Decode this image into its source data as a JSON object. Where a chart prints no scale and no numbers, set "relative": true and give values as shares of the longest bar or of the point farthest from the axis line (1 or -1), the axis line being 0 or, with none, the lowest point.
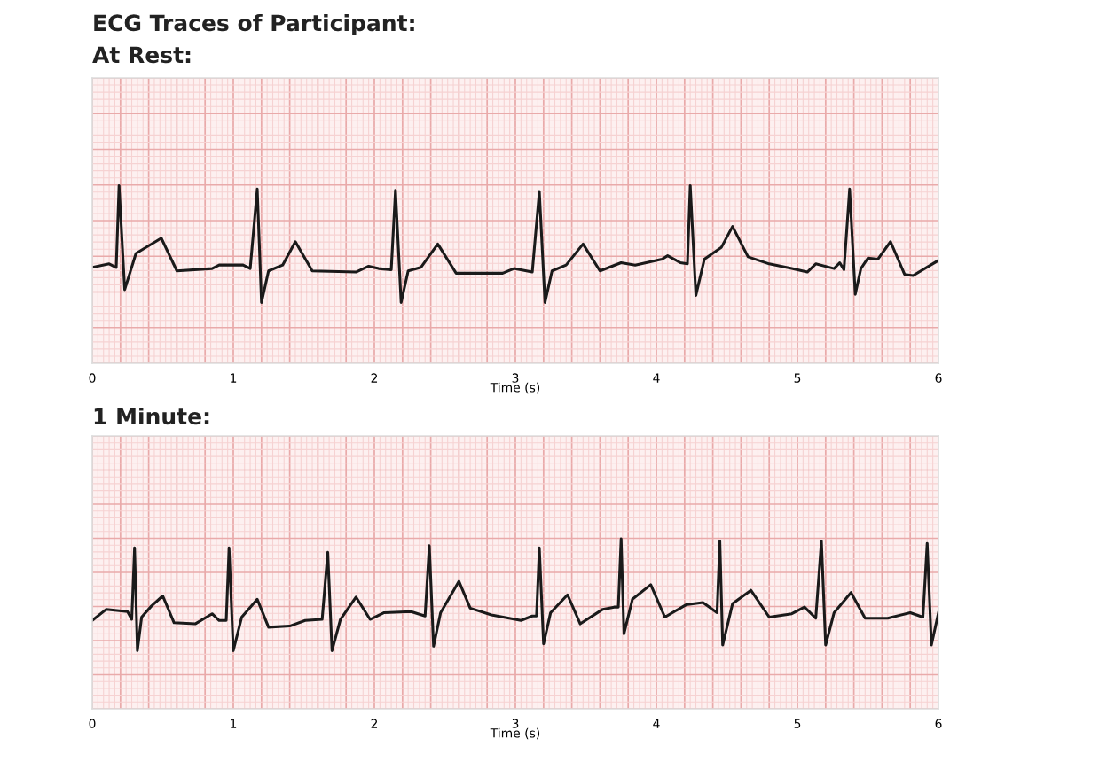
{
  "chart_data": [
    {
      "type": "line",
      "title": "ECG Traces of Participant:",
      "subtitle": "At Rest:",
      "xlabel": "Time (s)",
      "relative": true,
      "xlim": [
        0,
        6
      ],
      "xticks": [
        0,
        1,
        2,
        3,
        4,
        5,
        6
      ],
      "grid": true,
      "legend": false,
      "marker": "none",
      "line_style": "solid",
      "series": [
        {
          "color": "#1a1a1a",
          "x": [
            0,
            0.12,
            0.17,
            0.19,
            0.23,
            0.31,
            0.49,
            0.6,
            0.85,
            0.9,
            1.07,
            1.12,
            1.17,
            1.2,
            1.25,
            1.35,
            1.44,
            1.56,
            1.87,
            1.96,
            2.03,
            2.12,
            2.15,
            2.19,
            2.24,
            2.33,
            2.45,
            2.58,
            2.91,
            2.99,
            3.12,
            3.17,
            3.21,
            3.26,
            3.36,
            3.48,
            3.6,
            3.75,
            3.85,
            4.04,
            4.08,
            4.17,
            4.22,
            4.24,
            4.28,
            4.34,
            4.46,
            4.54,
            4.65,
            4.8,
            4.96,
            5.07,
            5.13,
            5.26,
            5.3,
            5.33,
            5.37,
            5.41,
            5.45,
            5.5,
            5.57,
            5.66,
            5.76,
            5.82,
            6.0
          ],
          "values": [
            0.3,
            0.33,
            0.3,
            1.0,
            0.11,
            0.42,
            0.55,
            0.27,
            0.29,
            0.32,
            0.32,
            0.29,
            0.97,
            0.0,
            0.27,
            0.32,
            0.52,
            0.27,
            0.26,
            0.31,
            0.29,
            0.28,
            0.96,
            0.0,
            0.27,
            0.3,
            0.5,
            0.25,
            0.25,
            0.29,
            0.26,
            0.95,
            0.0,
            0.27,
            0.32,
            0.5,
            0.27,
            0.34,
            0.32,
            0.37,
            0.4,
            0.34,
            0.33,
            1.0,
            0.06,
            0.37,
            0.47,
            0.65,
            0.39,
            0.33,
            0.29,
            0.26,
            0.33,
            0.29,
            0.34,
            0.28,
            0.97,
            0.07,
            0.29,
            0.38,
            0.37,
            0.52,
            0.24,
            0.23,
            0.36
          ]
        }
      ]
    },
    {
      "type": "line",
      "title": "1 Minute:",
      "xlabel": "Time (s)",
      "relative": true,
      "xlim": [
        0,
        6
      ],
      "xticks": [
        0,
        1,
        2,
        3,
        4,
        5,
        6
      ],
      "grid": true,
      "legend": false,
      "marker": "none",
      "line_style": "solid",
      "series": [
        {
          "color": "#1a1a1a",
          "x": [
            0,
            0.1,
            0.25,
            0.28,
            0.3,
            0.32,
            0.35,
            0.42,
            0.5,
            0.58,
            0.73,
            0.85,
            0.9,
            0.95,
            0.97,
            1.0,
            1.06,
            1.17,
            1.25,
            1.4,
            1.51,
            1.63,
            1.67,
            1.7,
            1.76,
            1.87,
            1.97,
            2.07,
            2.26,
            2.36,
            2.39,
            2.42,
            2.47,
            2.6,
            2.68,
            2.83,
            3.04,
            3.12,
            3.15,
            3.17,
            3.2,
            3.25,
            3.37,
            3.46,
            3.62,
            3.7,
            3.73,
            3.75,
            3.77,
            3.83,
            3.96,
            4.06,
            4.21,
            4.33,
            4.43,
            4.45,
            4.47,
            4.54,
            4.67,
            4.8,
            4.96,
            5.05,
            5.13,
            5.17,
            5.2,
            5.26,
            5.38,
            5.48,
            5.64,
            5.8,
            5.89,
            5.92,
            5.95,
            6.0
          ],
          "values": [
            0.27,
            0.37,
            0.35,
            0.28,
            0.92,
            0.0,
            0.3,
            0.4,
            0.49,
            0.25,
            0.24,
            0.33,
            0.27,
            0.27,
            0.92,
            0.0,
            0.3,
            0.46,
            0.21,
            0.22,
            0.27,
            0.28,
            0.88,
            0.0,
            0.28,
            0.48,
            0.28,
            0.34,
            0.35,
            0.31,
            0.94,
            0.04,
            0.34,
            0.62,
            0.38,
            0.32,
            0.27,
            0.31,
            0.31,
            0.92,
            0.06,
            0.34,
            0.5,
            0.24,
            0.37,
            0.39,
            0.39,
            1.0,
            0.15,
            0.46,
            0.59,
            0.3,
            0.41,
            0.43,
            0.34,
            0.98,
            0.05,
            0.42,
            0.54,
            0.3,
            0.33,
            0.39,
            0.29,
            0.98,
            0.05,
            0.34,
            0.52,
            0.29,
            0.29,
            0.34,
            0.3,
            0.96,
            0.05,
            0.34
          ]
        }
      ]
    }
  ]
}
